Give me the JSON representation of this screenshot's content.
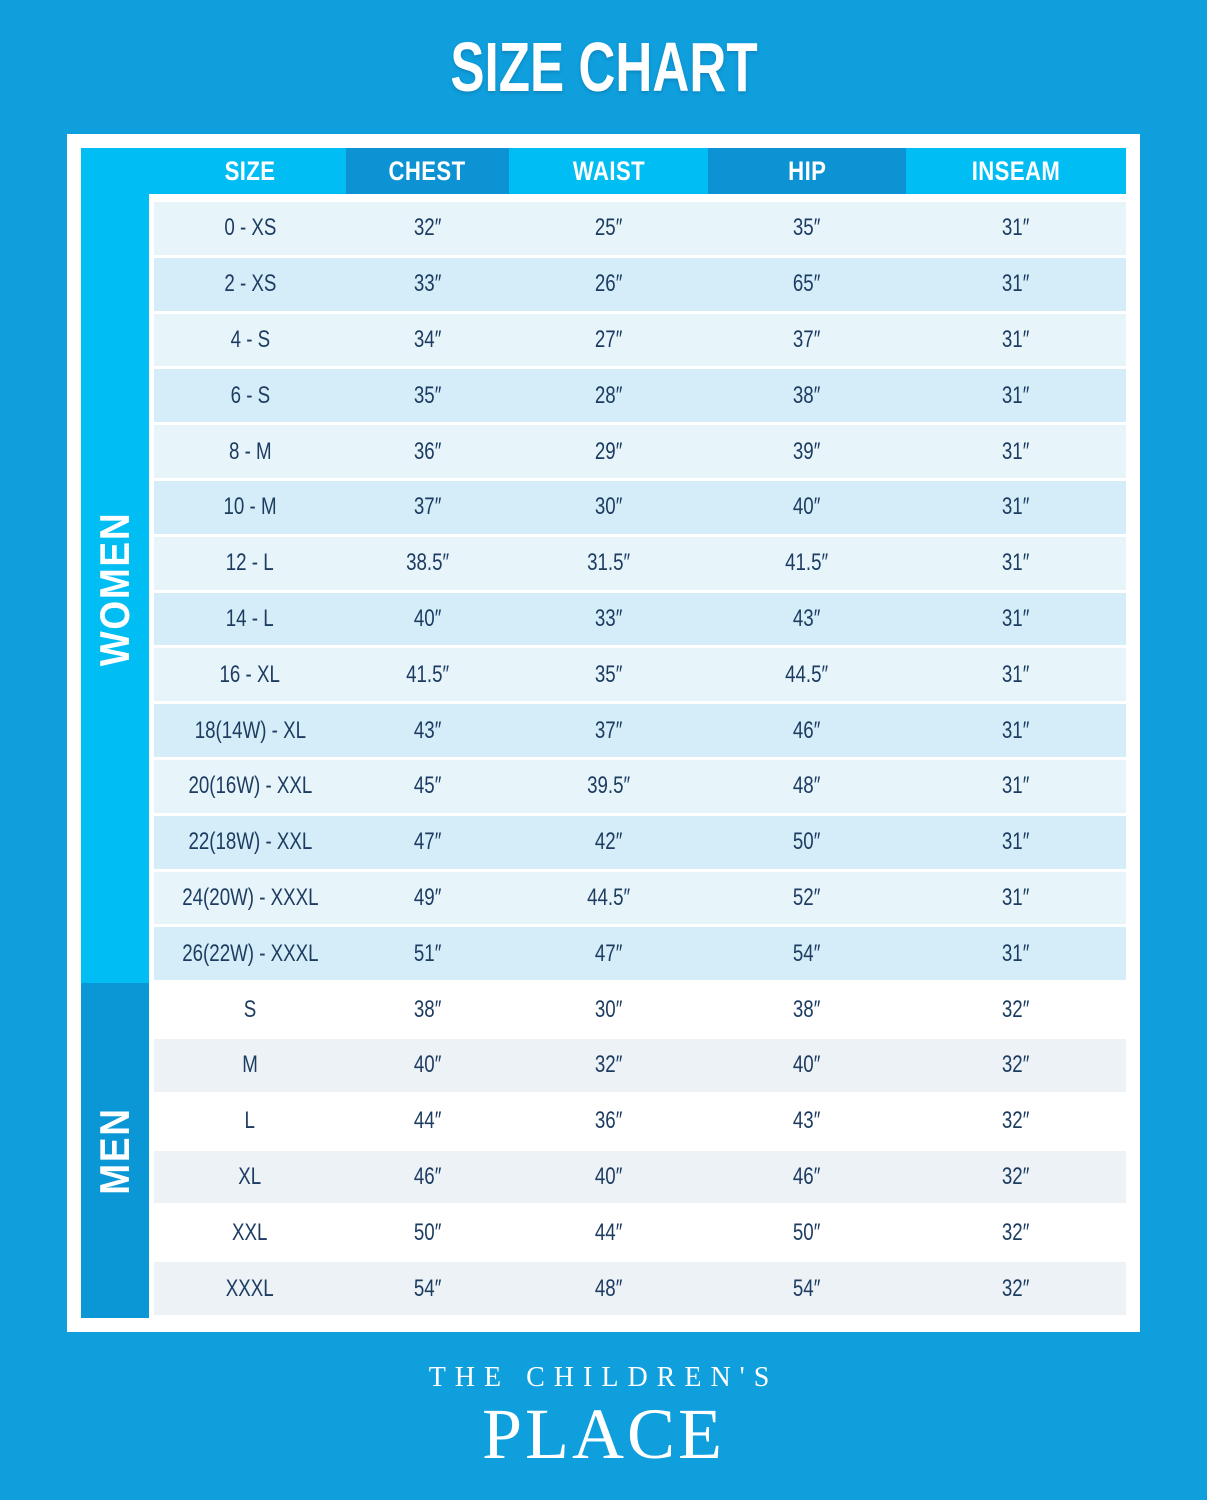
{
  "title": "SIZE CHART",
  "table": {
    "columns": [
      "SIZE",
      "CHEST",
      "WAIST",
      "HIP",
      "INSEAM"
    ],
    "sections": [
      {
        "label": "WOMEN",
        "rows": [
          [
            "0 - XS",
            "32″",
            "25″",
            "35″",
            "31″"
          ],
          [
            "2 - XS",
            "33″",
            "26″",
            "65″",
            "31″"
          ],
          [
            "4 - S",
            "34″",
            "27″",
            "37″",
            "31″"
          ],
          [
            "6 - S",
            "35″",
            "28″",
            "38″",
            "31″"
          ],
          [
            "8 - M",
            "36″",
            "29″",
            "39″",
            "31″"
          ],
          [
            "10 - M",
            "37″",
            "30″",
            "40″",
            "31″"
          ],
          [
            "12 - L",
            "38.5″",
            "31.5″",
            "41.5″",
            "31″"
          ],
          [
            "14 - L",
            "40″",
            "33″",
            "43″",
            "31″"
          ],
          [
            "16 - XL",
            "41.5″",
            "35″",
            "44.5″",
            "31″"
          ],
          [
            "18(14W) - XL",
            "43″",
            "37″",
            "46″",
            "31″"
          ],
          [
            "20(16W) - XXL",
            "45″",
            "39.5″",
            "48″",
            "31″"
          ],
          [
            "22(18W) - XXL",
            "47″",
            "42″",
            "50″",
            "31″"
          ],
          [
            "24(20W) - XXXL",
            "49″",
            "44.5″",
            "52″",
            "31″"
          ],
          [
            "26(22W) - XXXL",
            "51″",
            "47″",
            "54″",
            "31″"
          ]
        ]
      },
      {
        "label": "MEN",
        "rows": [
          [
            "S",
            "38″",
            "30″",
            "38″",
            "32″"
          ],
          [
            "M",
            "40″",
            "32″",
            "40″",
            "32″"
          ],
          [
            "L",
            "44″",
            "36″",
            "43″",
            "32″"
          ],
          [
            "XL",
            "46″",
            "40″",
            "46″",
            "32″"
          ],
          [
            "XXL",
            "50″",
            "44″",
            "50″",
            "32″"
          ],
          [
            "XXXL",
            "54″",
            "48″",
            "54″",
            "32″"
          ]
        ]
      }
    ]
  },
  "footer": {
    "brand_top": "THE CHILDREN'S",
    "brand_bottom": "PLACE"
  },
  "colors": {
    "page_background": "#0f9fdd",
    "header_light": "#00bef3",
    "header_dark": "#0d93d3",
    "women_sidebar": "#00bef3",
    "men_sidebar": "#0b97d6",
    "women_row_light": "#e7f5fb",
    "women_row_dark": "#d5edf8",
    "men_row_light": "#ffffff",
    "men_row_dark": "#edf2f7",
    "text_navy": "#1d3c61",
    "frame_white": "#ffffff"
  }
}
